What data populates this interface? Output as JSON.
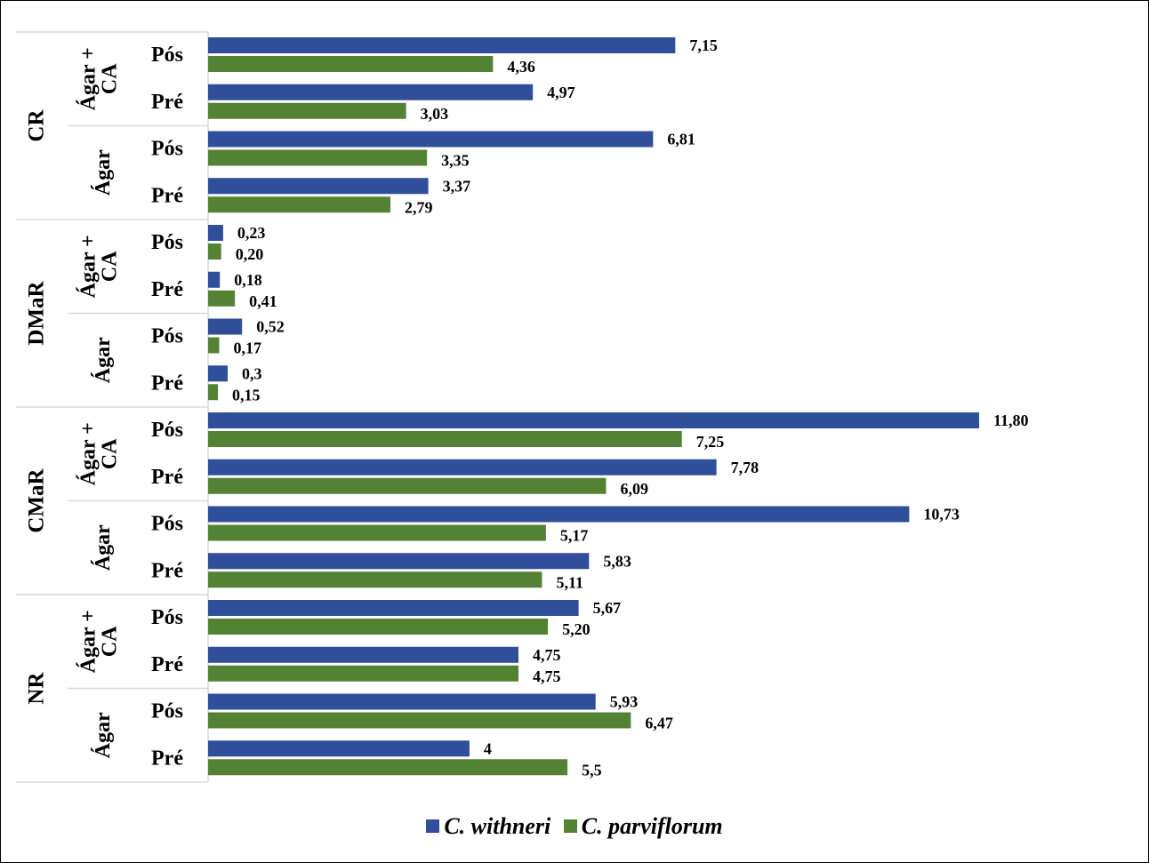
{
  "chart_data": {
    "type": "bar",
    "orientation": "horizontal",
    "title": "",
    "xlabel": "",
    "ylabel": "",
    "xlim": [
      0,
      12
    ],
    "grid": false,
    "legend_position": "bottom",
    "series": [
      {
        "name": "C. withneri",
        "color": "#2f4f9a"
      },
      {
        "name": "C. parviflorum",
        "color": "#548235"
      }
    ],
    "groups": [
      {
        "name": "CR",
        "subgroups": [
          {
            "name": "Ágar + CA",
            "rows": [
              {
                "label": "Pós",
                "values": [
                  7.15,
                  4.36
                ],
                "labels": [
                  "7,15",
                  "4,36"
                ]
              },
              {
                "label": "Pré",
                "values": [
                  4.97,
                  3.03
                ],
                "labels": [
                  "4,97",
                  "3,03"
                ]
              }
            ]
          },
          {
            "name": "Ágar",
            "rows": [
              {
                "label": "Pós",
                "values": [
                  6.81,
                  3.35
                ],
                "labels": [
                  "6,81",
                  "3,35"
                ]
              },
              {
                "label": "Pré",
                "values": [
                  3.37,
                  2.79
                ],
                "labels": [
                  "3,37",
                  "2,79"
                ]
              }
            ]
          }
        ]
      },
      {
        "name": "DMaR",
        "subgroups": [
          {
            "name": "Ágar + CA",
            "rows": [
              {
                "label": "Pós",
                "values": [
                  0.23,
                  0.2
                ],
                "labels": [
                  "0,23",
                  "0,20"
                ]
              },
              {
                "label": "Pré",
                "values": [
                  0.18,
                  0.41
                ],
                "labels": [
                  "0,18",
                  "0,41"
                ]
              }
            ]
          },
          {
            "name": "Ágar",
            "rows": [
              {
                "label": "Pós",
                "values": [
                  0.52,
                  0.17
                ],
                "labels": [
                  "0,52",
                  "0,17"
                ]
              },
              {
                "label": "Pré",
                "values": [
                  0.3,
                  0.15
                ],
                "labels": [
                  "0,3",
                  "0,15"
                ]
              }
            ]
          }
        ]
      },
      {
        "name": "CMaR",
        "subgroups": [
          {
            "name": "Ágar + CA",
            "rows": [
              {
                "label": "Pós",
                "values": [
                  11.8,
                  7.25
                ],
                "labels": [
                  "11,80",
                  "7,25"
                ]
              },
              {
                "label": "Pré",
                "values": [
                  7.78,
                  6.09
                ],
                "labels": [
                  "7,78",
                  "6,09"
                ]
              }
            ]
          },
          {
            "name": "Ágar",
            "rows": [
              {
                "label": "Pós",
                "values": [
                  10.73,
                  5.17
                ],
                "labels": [
                  "10,73",
                  "5,17"
                ]
              },
              {
                "label": "Pré",
                "values": [
                  5.83,
                  5.11
                ],
                "labels": [
                  "5,83",
                  "5,11"
                ]
              }
            ]
          }
        ]
      },
      {
        "name": "NR",
        "subgroups": [
          {
            "name": "Ágar + CA",
            "rows": [
              {
                "label": "Pós",
                "values": [
                  5.67,
                  5.2
                ],
                "labels": [
                  "5,67",
                  "5,20"
                ]
              },
              {
                "label": "Pré",
                "values": [
                  4.75,
                  4.75
                ],
                "labels": [
                  "4,75",
                  "4,75"
                ]
              }
            ]
          },
          {
            "name": "Ágar",
            "rows": [
              {
                "label": "Pós",
                "values": [
                  5.93,
                  6.47
                ],
                "labels": [
                  "5,93",
                  "6,47"
                ]
              },
              {
                "label": "Pré",
                "values": [
                  4,
                  5.5
                ],
                "labels": [
                  "4",
                  "5,5"
                ]
              }
            ]
          }
        ]
      }
    ]
  }
}
